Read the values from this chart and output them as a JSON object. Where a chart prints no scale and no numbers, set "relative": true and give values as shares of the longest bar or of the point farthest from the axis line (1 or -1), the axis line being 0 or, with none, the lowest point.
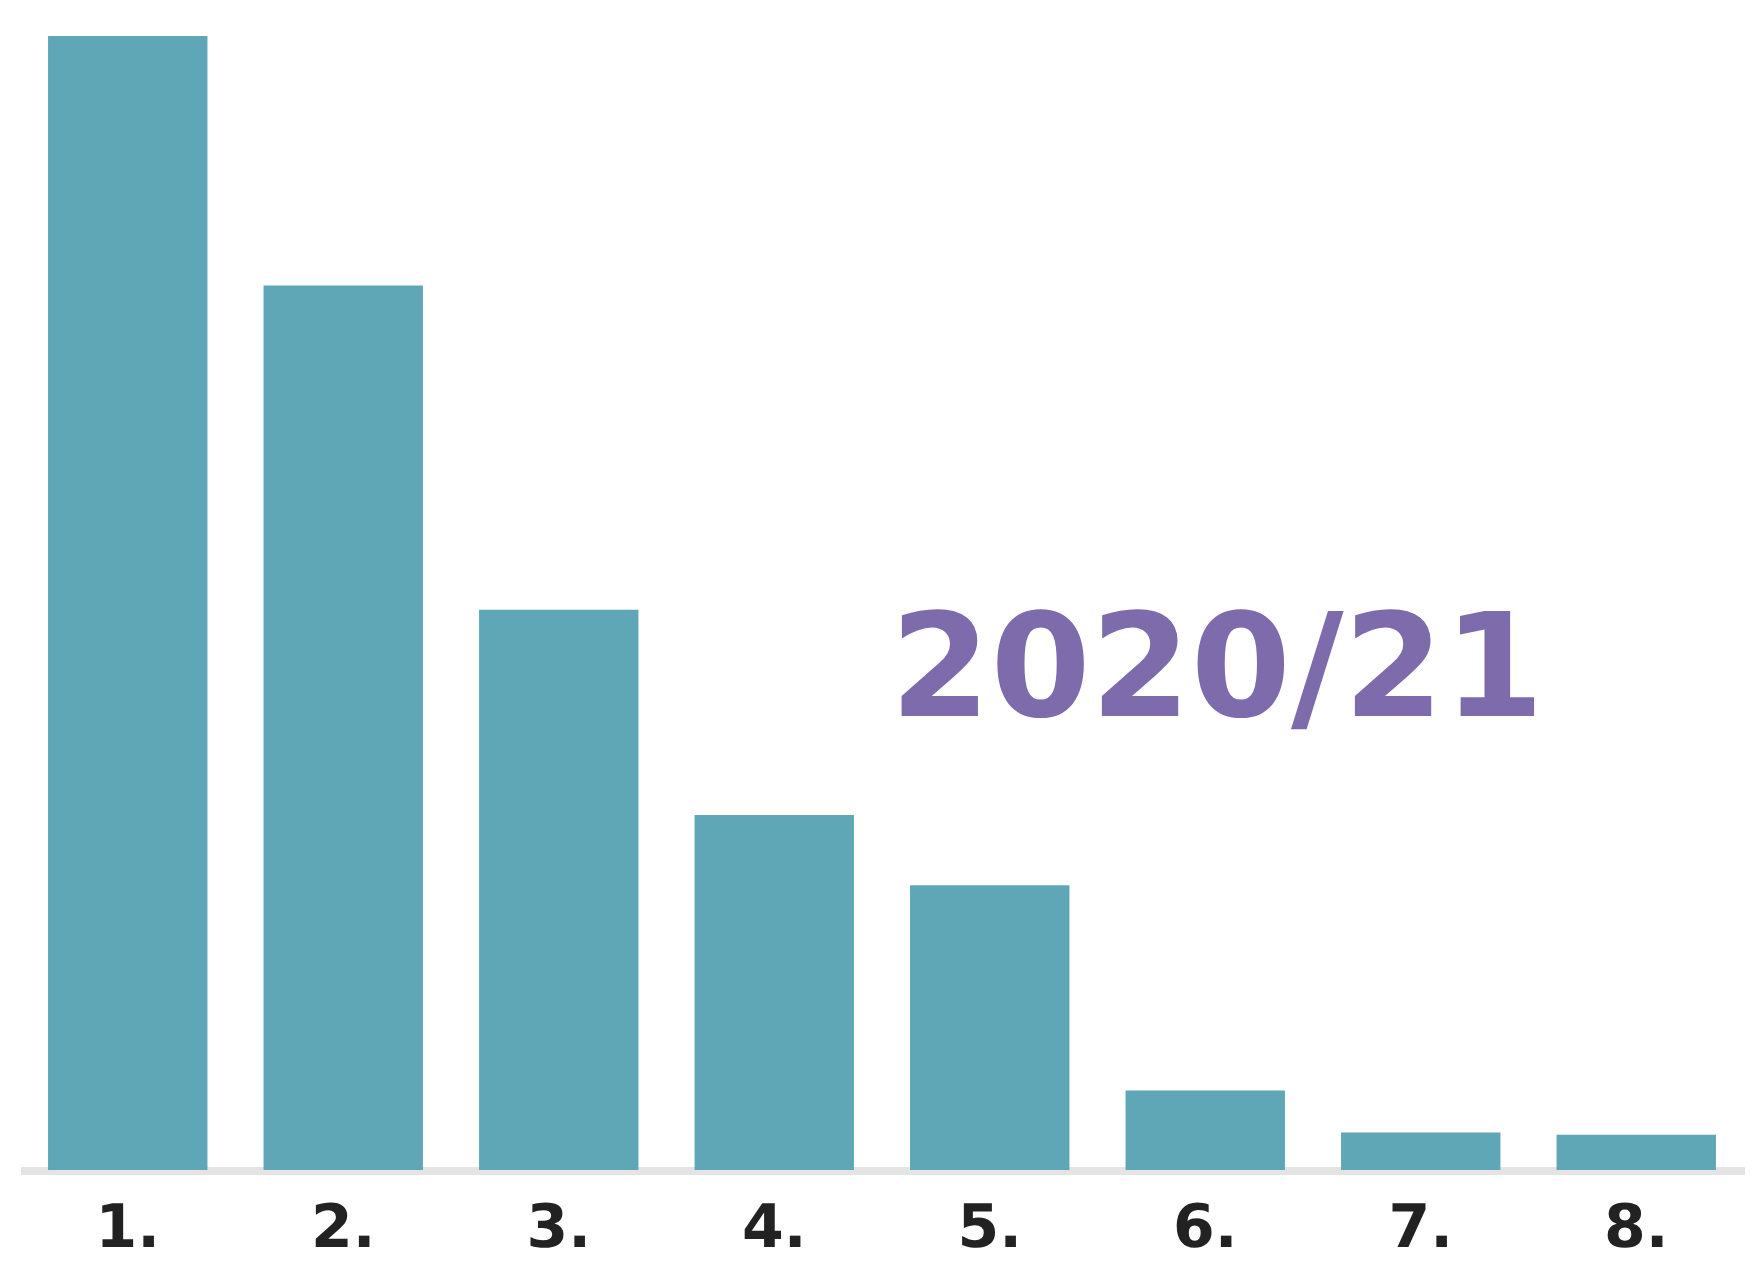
{
  "chart_data": {
    "type": "bar",
    "title": "2020/21",
    "relative": true,
    "categories": [
      "1.",
      "2.",
      "3.",
      "4.",
      "5.",
      "6.",
      "7.",
      "8."
    ],
    "values": [
      1,
      0.78,
      0.494,
      0.313,
      0.251,
      0.07,
      0.033,
      0.031
    ],
    "color": "#5fa6b6"
  }
}
